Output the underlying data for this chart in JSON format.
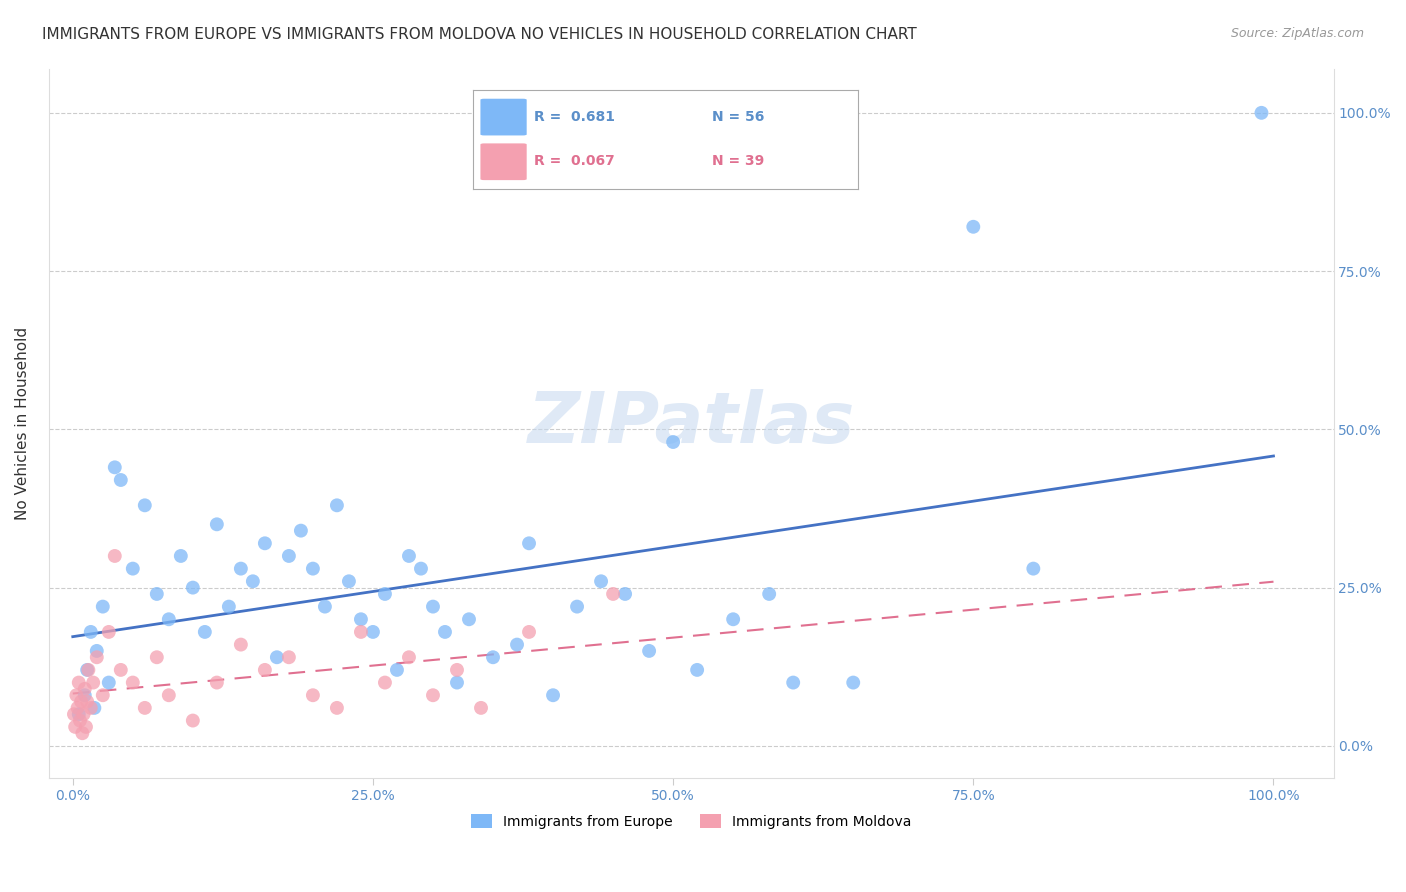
{
  "title": "IMMIGRANTS FROM EUROPE VS IMMIGRANTS FROM MOLDOVA NO VEHICLES IN HOUSEHOLD CORRELATION CHART",
  "source": "Source: ZipAtlas.com",
  "ylabel": "No Vehicles in Household",
  "legend_europe_r": "R =  0.681",
  "legend_europe_n": "N = 56",
  "legend_moldova_r": "R =  0.067",
  "legend_moldova_n": "N = 39",
  "legend_label_europe": "Immigrants from Europe",
  "legend_label_moldova": "Immigrants from Moldova",
  "europe_color": "#7EB8F7",
  "moldova_color": "#F4A0B0",
  "trendline_europe_color": "#4472C4",
  "trendline_moldova_color": "#E07090",
  "background_color": "#FFFFFF",
  "europe_x": [
    0.5,
    1.0,
    1.2,
    1.5,
    1.8,
    2.0,
    2.5,
    3.0,
    3.5,
    4.0,
    5.0,
    6.0,
    7.0,
    8.0,
    9.0,
    10.0,
    11.0,
    12.0,
    13.0,
    14.0,
    15.0,
    16.0,
    17.0,
    18.0,
    19.0,
    20.0,
    21.0,
    22.0,
    23.0,
    24.0,
    25.0,
    26.0,
    27.0,
    28.0,
    29.0,
    30.0,
    31.0,
    32.0,
    33.0,
    35.0,
    37.0,
    38.0,
    40.0,
    42.0,
    44.0,
    46.0,
    48.0,
    50.0,
    52.0,
    55.0,
    58.0,
    60.0,
    65.0,
    75.0,
    80.0,
    99.0
  ],
  "europe_y": [
    5,
    8,
    12,
    18,
    6,
    15,
    22,
    10,
    44,
    42,
    28,
    38,
    24,
    20,
    30,
    25,
    18,
    35,
    22,
    28,
    26,
    32,
    14,
    30,
    34,
    28,
    22,
    38,
    26,
    20,
    18,
    24,
    12,
    30,
    28,
    22,
    18,
    10,
    20,
    14,
    16,
    32,
    8,
    22,
    26,
    24,
    15,
    48,
    12,
    20,
    24,
    10,
    10,
    82,
    28,
    100
  ],
  "moldova_x": [
    0.1,
    0.2,
    0.3,
    0.4,
    0.5,
    0.6,
    0.7,
    0.8,
    0.9,
    1.0,
    1.1,
    1.2,
    1.3,
    1.5,
    1.7,
    2.0,
    2.5,
    3.0,
    3.5,
    4.0,
    5.0,
    6.0,
    7.0,
    8.0,
    10.0,
    12.0,
    14.0,
    16.0,
    18.0,
    20.0,
    22.0,
    24.0,
    26.0,
    28.0,
    30.0,
    32.0,
    34.0,
    38.0,
    45.0
  ],
  "moldova_y": [
    5,
    3,
    8,
    6,
    10,
    4,
    7,
    2,
    5,
    9,
    3,
    7,
    12,
    6,
    10,
    14,
    8,
    18,
    30,
    12,
    10,
    6,
    14,
    8,
    4,
    10,
    16,
    12,
    14,
    8,
    6,
    18,
    10,
    14,
    8,
    12,
    6,
    18,
    24
  ],
  "title_fontsize": 11,
  "axis_fontsize": 10,
  "ylabel_fontsize": 11,
  "source_fontsize": 9,
  "watermark_text": "ZIPatlas"
}
